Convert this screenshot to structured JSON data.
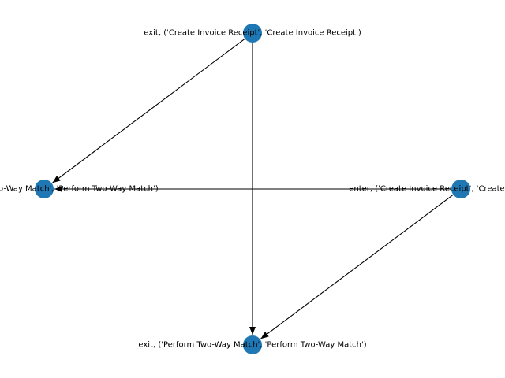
{
  "graph": {
    "node_color": "#1f77b4",
    "edge_color": "#000000",
    "nodes": [
      {
        "id": "n1",
        "label": "exit, ('Create Invoice Receipt', 'Create Invoice Receipt')"
      },
      {
        "id": "n2",
        "label": "exit, ('Perform Two-Way Match', 'Perform Two-Way Match')"
      },
      {
        "id": "n3",
        "label": "enter, ('Create Invoice Receipt', 'Create Invoice Receipt')"
      },
      {
        "id": "n4",
        "label": "exit, ('Perform Two-Way Match', 'Perform Two-Way Match')"
      }
    ],
    "edges": [
      {
        "from": "n1",
        "to": "n2"
      },
      {
        "from": "n1",
        "to": "n4"
      },
      {
        "from": "n3",
        "to": "n2"
      },
      {
        "from": "n3",
        "to": "n4"
      }
    ]
  }
}
